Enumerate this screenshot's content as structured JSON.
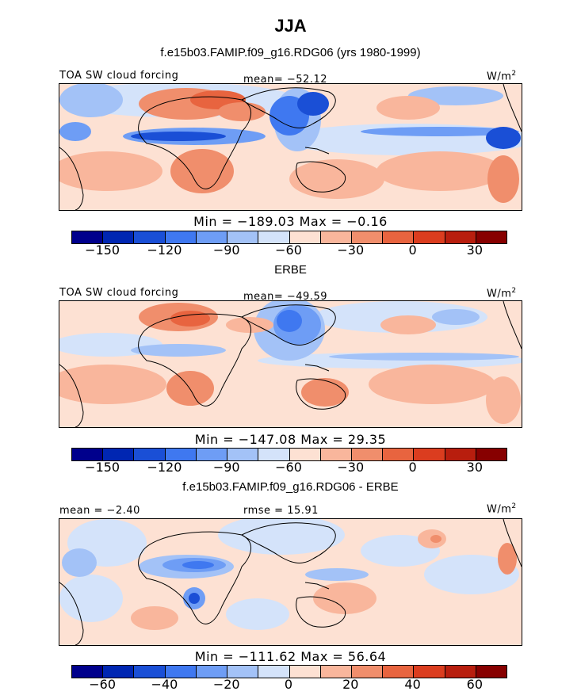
{
  "header": {
    "title": "JJA"
  },
  "colors": {
    "palette": [
      "#00008c",
      "#0026b2",
      "#1a4fd6",
      "#3f78f0",
      "#6e9df5",
      "#a3c2f7",
      "#d4e3fa",
      "#fde1d3",
      "#f9b69c",
      "#f08e6c",
      "#e8643f",
      "#db3d1f",
      "#b81e0e",
      "#870000"
    ],
    "land_outline": "#000000"
  },
  "panels": [
    {
      "title": "f.e15b03.FAMIP.f09_g16.RDG06 (yrs 1980-1999)",
      "left_label": "TOA SW cloud forcing",
      "center_label": "mean= −52.12",
      "units_label": "W/m",
      "units_sup": "2",
      "stats": "Min = −189.03 Max = −0.16",
      "colorbar_ticks": [
        "−150",
        "−120",
        "−90",
        "−60",
        "−30",
        "0",
        "30"
      ]
    },
    {
      "title": "ERBE",
      "left_label": "TOA SW cloud forcing",
      "center_label": "mean= −49.59",
      "units_label": "W/m",
      "units_sup": "2",
      "stats": "Min = −147.08 Max = 29.35",
      "colorbar_ticks": [
        "−150",
        "−120",
        "−90",
        "−60",
        "−30",
        "0",
        "30"
      ]
    },
    {
      "title": "f.e15b03.FAMIP.f09_g16.RDG06 - ERBE",
      "left_label": "mean = −2.40",
      "center_label": "rmse = 15.91",
      "units_label": "W/m",
      "units_sup": "2",
      "stats": "Min = −111.62 Max = 56.64",
      "colorbar_ticks": [
        "−60",
        "−40",
        "−20",
        "0",
        "20",
        "40",
        "60"
      ]
    }
  ]
}
